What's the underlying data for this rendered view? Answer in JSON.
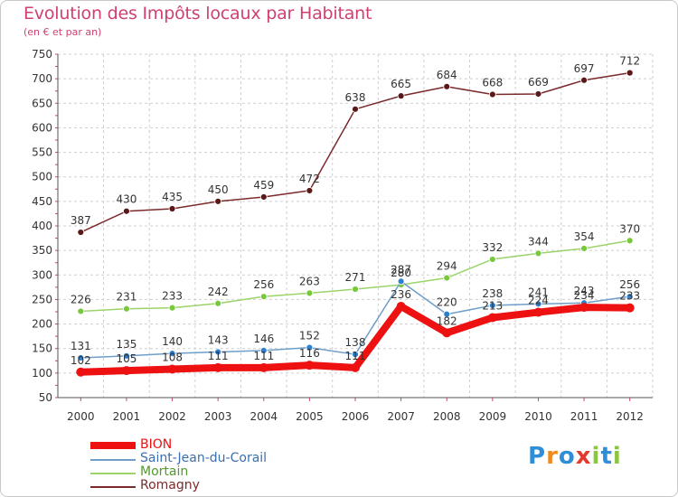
{
  "title": "Evolution des Impôts locaux par Habitant",
  "subtitle": "(en € et par an)",
  "logo": {
    "letters": [
      "P",
      "r",
      "o",
      "x",
      "i",
      "t",
      "i"
    ],
    "colors": [
      "#2e8fd8",
      "#f08a1c",
      "#2e8fd8",
      "#e23b2e",
      "#8cc63f",
      "#2e8fd8",
      "#8cc63f"
    ]
  },
  "chart_data": {
    "type": "line",
    "title": "Evolution des Impôts locaux par Habitant",
    "subtitle": "(en € et par an)",
    "x": [
      "2000",
      "2001",
      "2002",
      "2003",
      "2004",
      "2005",
      "2006",
      "2007",
      "2008",
      "2009",
      "2010",
      "2011",
      "2012"
    ],
    "ylim": [
      50,
      750
    ],
    "yticks": [
      50,
      100,
      150,
      200,
      250,
      300,
      350,
      400,
      450,
      500,
      550,
      600,
      650,
      700,
      750
    ],
    "grid": true,
    "legend_position": "bottom-left",
    "series": [
      {
        "name": "Romagny",
        "color": "#7a2a2a",
        "marker": "#5a1818",
        "values": [
          387,
          430,
          435,
          450,
          459,
          472,
          638,
          665,
          684,
          668,
          669,
          697,
          712
        ],
        "labels": [
          "387",
          "430",
          "435",
          "450",
          "459",
          "472",
          "638",
          "665",
          "684",
          "668",
          "669",
          "697",
          "712"
        ]
      },
      {
        "name": "Mortain",
        "color": "#9ad46a",
        "marker": "#78c83c",
        "values": [
          226,
          231,
          233,
          242,
          256,
          263,
          271,
          280,
          294,
          332,
          344,
          354,
          370
        ],
        "labels": [
          "226",
          "231",
          "233",
          "242",
          "256",
          "263",
          "271",
          "280",
          "294",
          "332",
          "344",
          "354",
          "370"
        ]
      },
      {
        "name": "Saint-Jean-du-Corail",
        "color": "#6f9ec8",
        "marker": "#2f7fd0",
        "values": [
          131,
          135,
          140,
          143,
          146,
          152,
          138,
          287,
          220,
          238,
          241,
          243,
          256
        ],
        "labels": [
          "131",
          "135",
          "140",
          "143",
          "146",
          "152",
          "138",
          "287",
          "220",
          "238",
          "241",
          "243",
          "256"
        ]
      },
      {
        "name": "BION",
        "color": "#ee1111",
        "marker": "#ee1111",
        "values": [
          102,
          105,
          108,
          111,
          111,
          116,
          111,
          236,
          182,
          213,
          224,
          234,
          233
        ],
        "labels": [
          "102",
          "105",
          "108",
          "111",
          "111",
          "116",
          "111",
          "236",
          "182",
          "213",
          "224",
          "234",
          "233"
        ]
      }
    ],
    "legend_order": [
      "BION",
      "Saint-Jean-du-Corail",
      "Mortain",
      "Romagny"
    ]
  }
}
